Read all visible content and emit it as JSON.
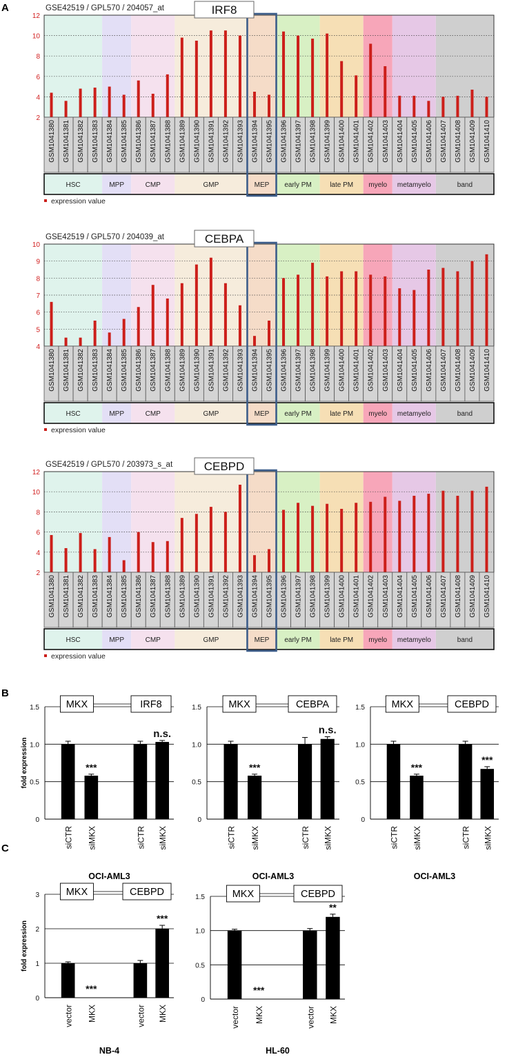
{
  "panel_letters": {
    "a": "A",
    "b": "B",
    "c": "C"
  },
  "colors": {
    "bar_red": "#cc1f1a",
    "axis_red": "#d11d1d",
    "mep_frame": "#3c5d8a",
    "bar_black": "#000000"
  },
  "samples": [
    "GSM1041380",
    "GSM1041381",
    "GSM1041382",
    "GSM1041383",
    "GSM1041384",
    "GSM1041385",
    "GSM1041386",
    "GSM1041387",
    "GSM1041388",
    "GSM1041389",
    "GSM1041390",
    "GSM1041391",
    "GSM1041392",
    "GSM1041393",
    "GSM1041394",
    "GSM1041395",
    "GSM1041396",
    "GSM1041397",
    "GSM1041398",
    "GSM1041399",
    "GSM1041400",
    "GSM1041401",
    "GSM1041402",
    "GSM1041403",
    "GSM1041404",
    "GSM1041405",
    "GSM1041406",
    "GSM1041407",
    "GSM1041408",
    "GSM1041409",
    "GSM1041410"
  ],
  "groups": [
    {
      "name": "HSC",
      "count": 4,
      "color": "#dff3ec"
    },
    {
      "name": "MPP",
      "count": 2,
      "color": "#e3dff6"
    },
    {
      "name": "CMP",
      "count": 3,
      "color": "#f5e1ee"
    },
    {
      "name": "GMP",
      "count": 5,
      "color": "#f6ecdc"
    },
    {
      "name": "MEP",
      "count": 2,
      "color": "#f5dcc8"
    },
    {
      "name": "early PM",
      "count": 3,
      "color": "#d8f0c4"
    },
    {
      "name": "late PM",
      "count": 3,
      "color": "#f6dfb5"
    },
    {
      "name": "myelo",
      "count": 2,
      "color": "#f7a6b9"
    },
    {
      "name": "metamyelo",
      "count": 3,
      "color": "#e6c8e6"
    },
    {
      "name": "band",
      "count": 4,
      "color": "#cfcfcf"
    }
  ],
  "legend_label": "expression value",
  "chart_data": [
    {
      "type": "bar",
      "panel": "A",
      "header": "GSE42519 / GPL570 / 204057_at",
      "title": "IRF8",
      "categories_ref": "samples",
      "ylim": [
        2,
        12
      ],
      "yticks": [
        "2",
        "4",
        "6",
        "8",
        "10",
        "12"
      ],
      "values": [
        4.4,
        3.6,
        4.8,
        4.9,
        5.0,
        4.2,
        5.6,
        4.3,
        6.2,
        9.8,
        9.5,
        10.5,
        10.5,
        10.0,
        4.5,
        4.2,
        10.4,
        10.0,
        9.7,
        10.2,
        7.5,
        6.1,
        9.2,
        7.0,
        4.1,
        4.1,
        3.6,
        4.0,
        4.1,
        4.7,
        4.0
      ]
    },
    {
      "type": "bar",
      "panel": "A",
      "header": "GSE42519 / GPL570 / 204039_at",
      "title": "CEBPA",
      "categories_ref": "samples",
      "ylim": [
        4,
        10
      ],
      "yticks": [
        "4",
        "5",
        "6",
        "7",
        "8",
        "9",
        "10"
      ],
      "values": [
        6.6,
        4.5,
        4.5,
        5.5,
        4.8,
        5.6,
        6.3,
        7.6,
        6.8,
        7.7,
        8.8,
        9.2,
        7.7,
        6.4,
        4.6,
        5.5,
        8.0,
        8.2,
        8.9,
        8.1,
        8.4,
        8.4,
        8.2,
        8.1,
        7.4,
        7.3,
        8.5,
        8.6,
        8.4,
        9.0,
        9.4
      ]
    },
    {
      "type": "bar",
      "panel": "A",
      "header": "GSE42519 / GPL570 / 203973_s_at",
      "title": "CEBPD",
      "categories_ref": "samples",
      "ylim": [
        2,
        12
      ],
      "yticks": [
        "2",
        "4",
        "6",
        "8",
        "10",
        "12"
      ],
      "values": [
        5.7,
        4.4,
        5.9,
        4.3,
        5.5,
        3.2,
        6.0,
        5.0,
        5.1,
        7.4,
        7.8,
        8.5,
        8.0,
        10.7,
        3.7,
        4.3,
        8.2,
        8.9,
        8.6,
        8.8,
        8.3,
        8.9,
        9.0,
        9.5,
        9.1,
        9.6,
        9.8,
        10.1,
        9.6,
        10.1,
        10.5
      ]
    },
    {
      "type": "bar",
      "panel": "B",
      "box1": "MKX",
      "box2": "IRF8",
      "ylabel": "fold expression",
      "xlabel": "OCI-AML3",
      "ylim": [
        0,
        1.5
      ],
      "yticks": [
        "0",
        "0.5",
        "1.0",
        "1.5"
      ],
      "categories": [
        "siCTR",
        "siMKX",
        "siCTR",
        "siMKX"
      ],
      "values": [
        1.0,
        0.58,
        1.0,
        1.03
      ],
      "errors": [
        0.04,
        0.02,
        0.04,
        0.02
      ],
      "significance": [
        "",
        "***",
        "",
        "n.s."
      ]
    },
    {
      "type": "bar",
      "panel": "B",
      "box1": "MKX",
      "box2": "CEBPA",
      "xlabel": "OCI-AML3",
      "ylim": [
        0,
        1.5
      ],
      "yticks": [
        "0",
        "0.5",
        "1.0",
        "1.5"
      ],
      "categories": [
        "siCTR",
        "siMKX",
        "siCTR",
        "siMKX"
      ],
      "values": [
        1.0,
        0.58,
        1.0,
        1.07
      ],
      "errors": [
        0.04,
        0.02,
        0.09,
        0.03
      ],
      "significance": [
        "",
        "***",
        "",
        "n.s."
      ]
    },
    {
      "type": "bar",
      "panel": "B",
      "box1": "MKX",
      "box2": "CEBPD",
      "xlabel": "OCI-AML3",
      "ylim": [
        0,
        1.5
      ],
      "yticks": [
        "0",
        "0.5",
        "1.0",
        "1.5"
      ],
      "categories": [
        "siCTR",
        "siMKX",
        "siCTR",
        "siMKX"
      ],
      "values": [
        1.0,
        0.58,
        1.0,
        0.67
      ],
      "errors": [
        0.04,
        0.02,
        0.04,
        0.03
      ],
      "significance": [
        "",
        "***",
        "",
        "***"
      ]
    },
    {
      "type": "bar",
      "panel": "C",
      "box1": "MKX",
      "box2": "CEBPD",
      "ylabel": "fold expression",
      "xlabel": "NB-4",
      "ylim": [
        0,
        3
      ],
      "yticks": [
        "0",
        "1",
        "2",
        "3"
      ],
      "categories": [
        "vector",
        "MKX",
        "vector",
        "MKX"
      ],
      "values": [
        1.0,
        0.0,
        1.0,
        2.0
      ],
      "errors": [
        0.04,
        0.0,
        0.08,
        0.1
      ],
      "significance": [
        "",
        "***",
        "",
        "***"
      ]
    },
    {
      "type": "bar",
      "panel": "C",
      "box1": "MKX",
      "box2": "CEBPD",
      "xlabel": "HL-60",
      "ylim": [
        0,
        1.5
      ],
      "yticks": [
        "0",
        "0.5",
        "1.0",
        "1.5"
      ],
      "categories": [
        "vector",
        "MKX",
        "vector",
        "MKX"
      ],
      "values": [
        1.0,
        0.0,
        1.0,
        1.2
      ],
      "errors": [
        0.02,
        0.0,
        0.03,
        0.04
      ],
      "significance": [
        "",
        "***",
        "",
        "**"
      ]
    }
  ]
}
